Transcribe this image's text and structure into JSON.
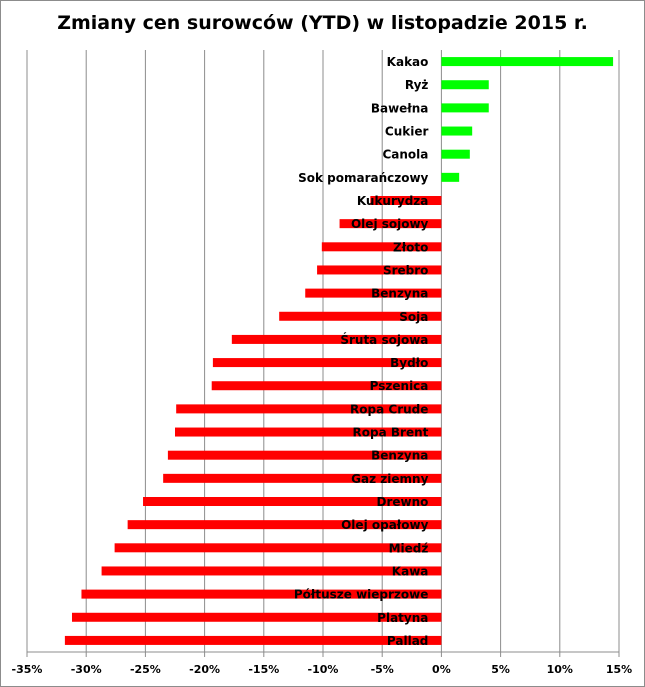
{
  "chart_data": {
    "type": "bar",
    "orientation": "horizontal",
    "title": "Zmiany cen surowców (YTD) w listopadzie 2015 r.",
    "xlabel": "",
    "ylabel": "",
    "xlim": [
      -35,
      15
    ],
    "x_ticks": [
      "-35%",
      "-30%",
      "-25%",
      "-20%",
      "-15%",
      "-10%",
      "-5%",
      "0%",
      "5%",
      "10%",
      "15%"
    ],
    "grid": "vertical",
    "colors": {
      "positive": "#00ff00",
      "negative": "#ff0000",
      "grid": "#8c8c8c"
    },
    "categories": [
      "Kakao",
      "Ryż",
      "Bawełna",
      "Cukier",
      "Canola",
      "Sok pomarańczowy",
      "Kukurydza",
      "Olej sojowy",
      "Złoto",
      "Srebro",
      "Benzyna",
      "Soja",
      "Śruta sojowa",
      "Bydło",
      "Pszenica",
      "Ropa Crude",
      "Ropa Brent",
      "Benzyna",
      "Gaz ziemny",
      "Drewno",
      "Olej opałowy",
      "Miedź",
      "Kawa",
      "Półtusze wieprzowe",
      "Platyna",
      "Pallad"
    ],
    "values": [
      14.5,
      4.0,
      4.0,
      2.6,
      2.4,
      1.5,
      -6.0,
      -8.6,
      -10.1,
      -10.5,
      -11.5,
      -13.7,
      -17.7,
      -19.3,
      -19.4,
      -22.4,
      -22.5,
      -23.1,
      -23.5,
      -25.2,
      -26.5,
      -27.6,
      -28.7,
      -30.4,
      -31.2,
      -31.8
    ]
  }
}
